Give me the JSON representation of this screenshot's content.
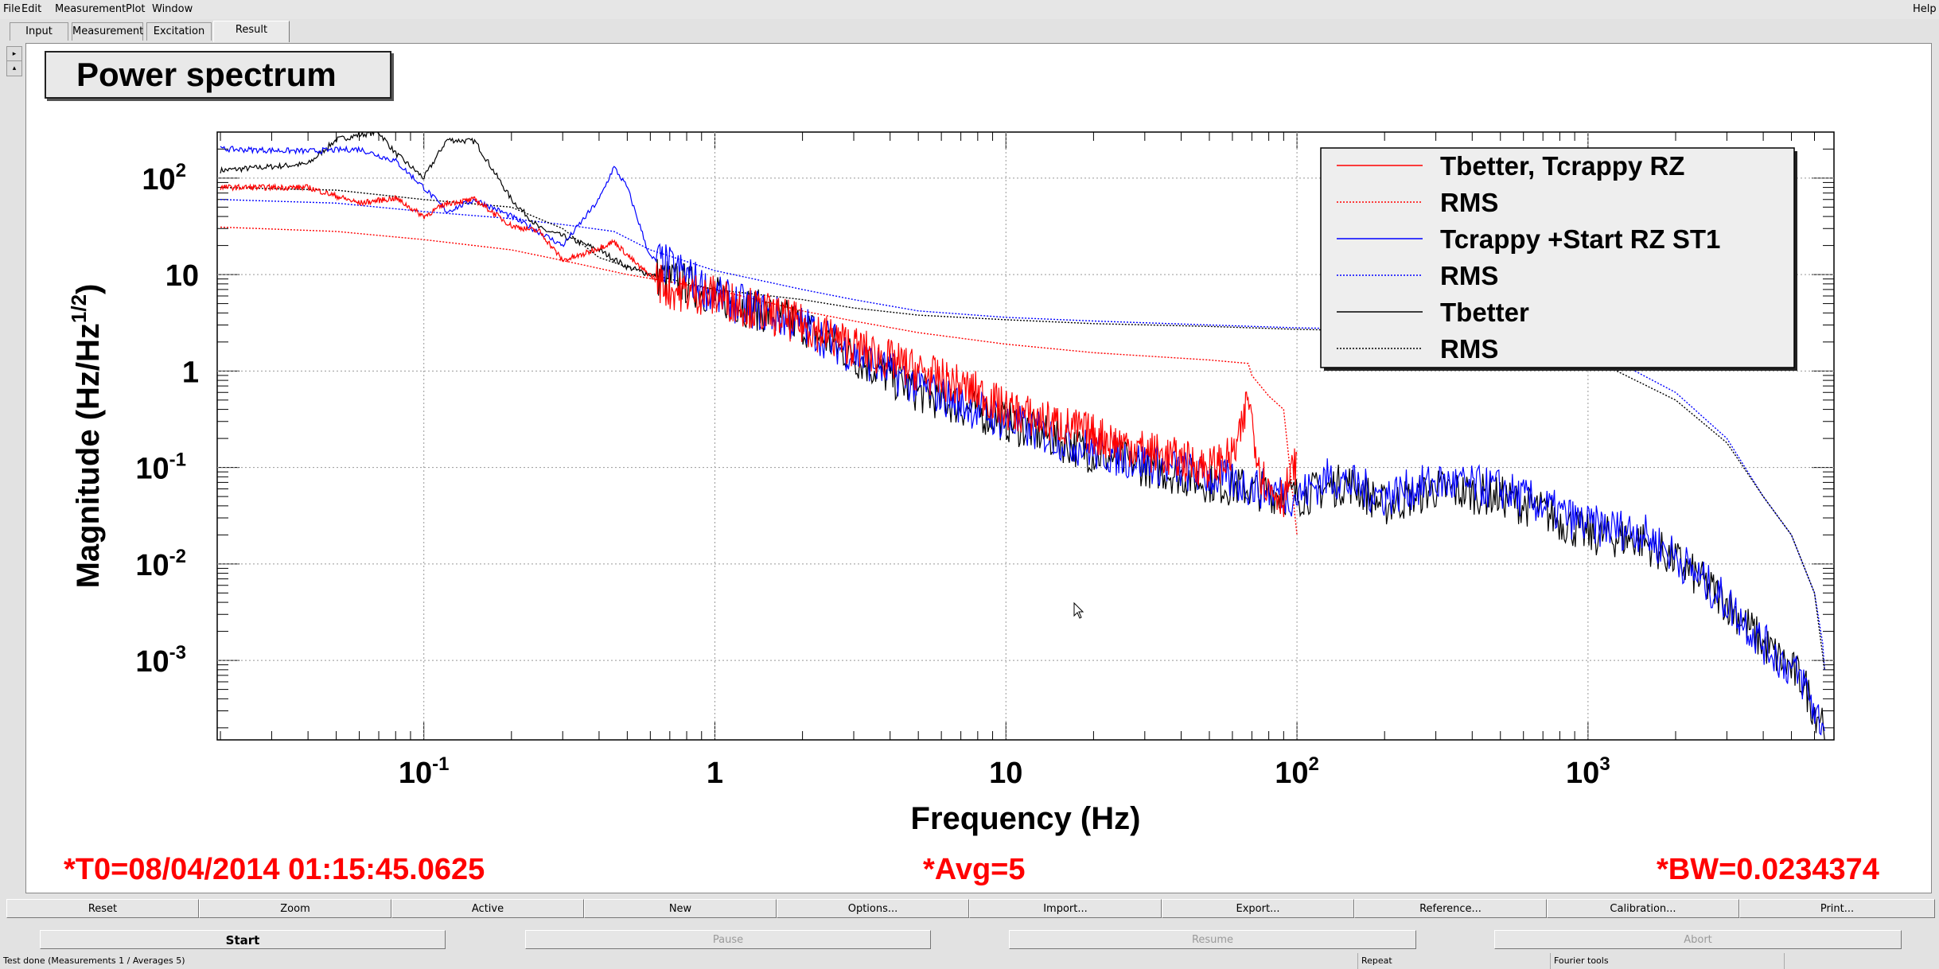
{
  "menu": {
    "file": "File",
    "edit": "Edit",
    "measurement": "Measurement",
    "plot": "Plot",
    "window": "Window",
    "help": "Help"
  },
  "tabs": [
    "Input",
    "Measurement",
    "Excitation",
    "Result"
  ],
  "panel_title": "Power spectrum",
  "info": {
    "t0": "*T0=08/04/2014 01:15:45.0625",
    "avg": "*Avg=5",
    "bw": "*BW=0.0234374"
  },
  "toolbar": [
    "Reset",
    "Zoom",
    "Active",
    "New",
    "Options...",
    "Import...",
    "Export...",
    "Reference...",
    "Calibration...",
    "Print..."
  ],
  "controls": {
    "start": "Start",
    "pause": "Pause",
    "resume": "Resume",
    "abort": "Abort"
  },
  "status": {
    "text": "Test done (Measurements 1 / Averages 5)",
    "repeat": "Repeat",
    "fourier": "Fourier tools"
  },
  "colors": {
    "red": "#ff0000",
    "blue": "#0000ff",
    "black": "#000000"
  },
  "chart_data": {
    "type": "line",
    "xlabel": "Frequency (Hz)",
    "ylabel_main": "Magnitude (Hz/Hz",
    "ylabel_sup": "1/2",
    "ylabel_close": ")",
    "xscale": "log",
    "yscale": "log",
    "xlim": [
      0.0195,
      7000
    ],
    "ylim": [
      0.00015,
      300
    ],
    "grid": true,
    "legend_position": "top-right",
    "x_ticks": [
      {
        "value": 0.1,
        "base": "10",
        "exp": "-1"
      },
      {
        "value": 1,
        "base": "1",
        "exp": ""
      },
      {
        "value": 10,
        "base": "10",
        "exp": ""
      },
      {
        "value": 100,
        "base": "10",
        "exp": "2"
      },
      {
        "value": 1000,
        "base": "10",
        "exp": "3"
      }
    ],
    "y_ticks": [
      {
        "value": 100,
        "base": "10",
        "exp": "2"
      },
      {
        "value": 10,
        "base": "10",
        "exp": ""
      },
      {
        "value": 1,
        "base": "1",
        "exp": ""
      },
      {
        "value": 0.1,
        "base": "10",
        "exp": "-1"
      },
      {
        "value": 0.01,
        "base": "10",
        "exp": "-2"
      },
      {
        "value": 0.001,
        "base": "10",
        "exp": "-3"
      }
    ],
    "series": [
      {
        "name": "Tbetter, Tcrappy RZ",
        "color": "#ff0000",
        "dash": "solid",
        "noise": true,
        "x": [
          0.02,
          0.04,
          0.06,
          0.08,
          0.1,
          0.12,
          0.15,
          0.2,
          0.25,
          0.3,
          0.35,
          0.45,
          0.55,
          0.7,
          1,
          1.5,
          2,
          3,
          5,
          8,
          10,
          20,
          30,
          50,
          60,
          65,
          68,
          70,
          75,
          80,
          90,
          100
        ],
        "y": [
          80,
          80,
          55,
          62,
          40,
          55,
          60,
          32,
          28,
          14,
          16,
          22,
          12,
          7,
          6,
          4,
          3,
          1.8,
          1.0,
          0.6,
          0.4,
          0.22,
          0.15,
          0.1,
          0.13,
          0.25,
          0.6,
          0.3,
          0.09,
          0.06,
          0.05,
          0.12
        ]
      },
      {
        "name": "RMS",
        "color": "#ff0000",
        "dash": "dotted",
        "noise": false,
        "x": [
          0.02,
          0.05,
          0.1,
          0.2,
          0.3,
          0.5,
          1,
          2,
          3,
          5,
          10,
          20,
          50,
          68,
          70,
          80,
          90,
          100
        ],
        "y": [
          31,
          28,
          23,
          18,
          14,
          10,
          7,
          4.2,
          3.3,
          2.5,
          1.9,
          1.55,
          1.3,
          1.2,
          0.9,
          0.55,
          0.4,
          0.02
        ]
      },
      {
        "name": "Tcrappy +Start RZ ST1",
        "color": "#0000ff",
        "dash": "solid",
        "noise": true,
        "x": [
          0.02,
          0.04,
          0.06,
          0.08,
          0.1,
          0.12,
          0.15,
          0.2,
          0.3,
          0.4,
          0.45,
          0.5,
          0.6,
          0.8,
          1,
          2,
          3,
          5,
          10,
          20,
          50,
          100,
          130,
          200,
          300,
          500,
          700,
          1000,
          1500,
          2000,
          3000,
          4000,
          5000,
          5500,
          6000,
          6500
        ],
        "y": [
          200,
          190,
          200,
          150,
          80,
          45,
          60,
          40,
          20,
          60,
          130,
          80,
          15,
          10,
          6,
          3,
          1.5,
          0.7,
          0.3,
          0.15,
          0.08,
          0.05,
          0.08,
          0.05,
          0.07,
          0.06,
          0.04,
          0.025,
          0.022,
          0.012,
          0.004,
          0.0015,
          0.0008,
          0.0006,
          0.0003,
          0.0002
        ]
      },
      {
        "name": "RMS",
        "color": "#0000ff",
        "dash": "dotted",
        "noise": false,
        "x": [
          0.02,
          0.05,
          0.1,
          0.2,
          0.3,
          0.45,
          0.6,
          1,
          2,
          3,
          5,
          10,
          20,
          50,
          100,
          200,
          500,
          1000,
          2000,
          3000,
          4000,
          5000,
          6000,
          6400,
          6500
        ],
        "y": [
          60,
          55,
          45,
          38,
          33,
          28,
          18,
          11,
          7,
          5.5,
          4.2,
          3.6,
          3.3,
          3.0,
          2.8,
          2.7,
          2.5,
          1.8,
          0.6,
          0.2,
          0.05,
          0.02,
          0.005,
          0.0015,
          0.0008
        ]
      },
      {
        "name": "Tbetter",
        "color": "#000000",
        "dash": "solid",
        "noise": true,
        "x": [
          0.02,
          0.04,
          0.05,
          0.06,
          0.07,
          0.08,
          0.1,
          0.12,
          0.15,
          0.2,
          0.25,
          0.3,
          0.4,
          0.5,
          0.6,
          0.8,
          1,
          2,
          3,
          5,
          10,
          20,
          50,
          100,
          150,
          200,
          300,
          500,
          700,
          1000,
          1500,
          2000,
          3000,
          4000,
          5000,
          5500,
          6000,
          6500
        ],
        "y": [
          120,
          140,
          250,
          280,
          300,
          180,
          100,
          250,
          240,
          60,
          30,
          25,
          18,
          12,
          10,
          8,
          6,
          3,
          1.4,
          0.6,
          0.3,
          0.14,
          0.07,
          0.05,
          0.07,
          0.04,
          0.06,
          0.05,
          0.035,
          0.02,
          0.018,
          0.011,
          0.004,
          0.0015,
          0.0008,
          0.0006,
          0.0003,
          0.00025
        ]
      },
      {
        "name": "RMS",
        "color": "#000000",
        "dash": "dotted",
        "noise": false,
        "x": [
          0.02,
          0.05,
          0.1,
          0.2,
          0.3,
          0.4,
          0.6,
          1,
          2,
          3,
          5,
          10,
          20,
          50,
          100,
          200,
          500,
          700,
          1000,
          2000,
          3000,
          4000,
          5000,
          6000,
          6500
        ],
        "y": [
          80,
          75,
          60,
          50,
          30,
          15,
          10,
          7,
          5.5,
          4.5,
          3.8,
          3.4,
          3.1,
          2.9,
          2.7,
          2.6,
          2.5,
          1.6,
          1.4,
          0.5,
          0.18,
          0.05,
          0.02,
          0.005,
          0.0008
        ]
      }
    ]
  }
}
